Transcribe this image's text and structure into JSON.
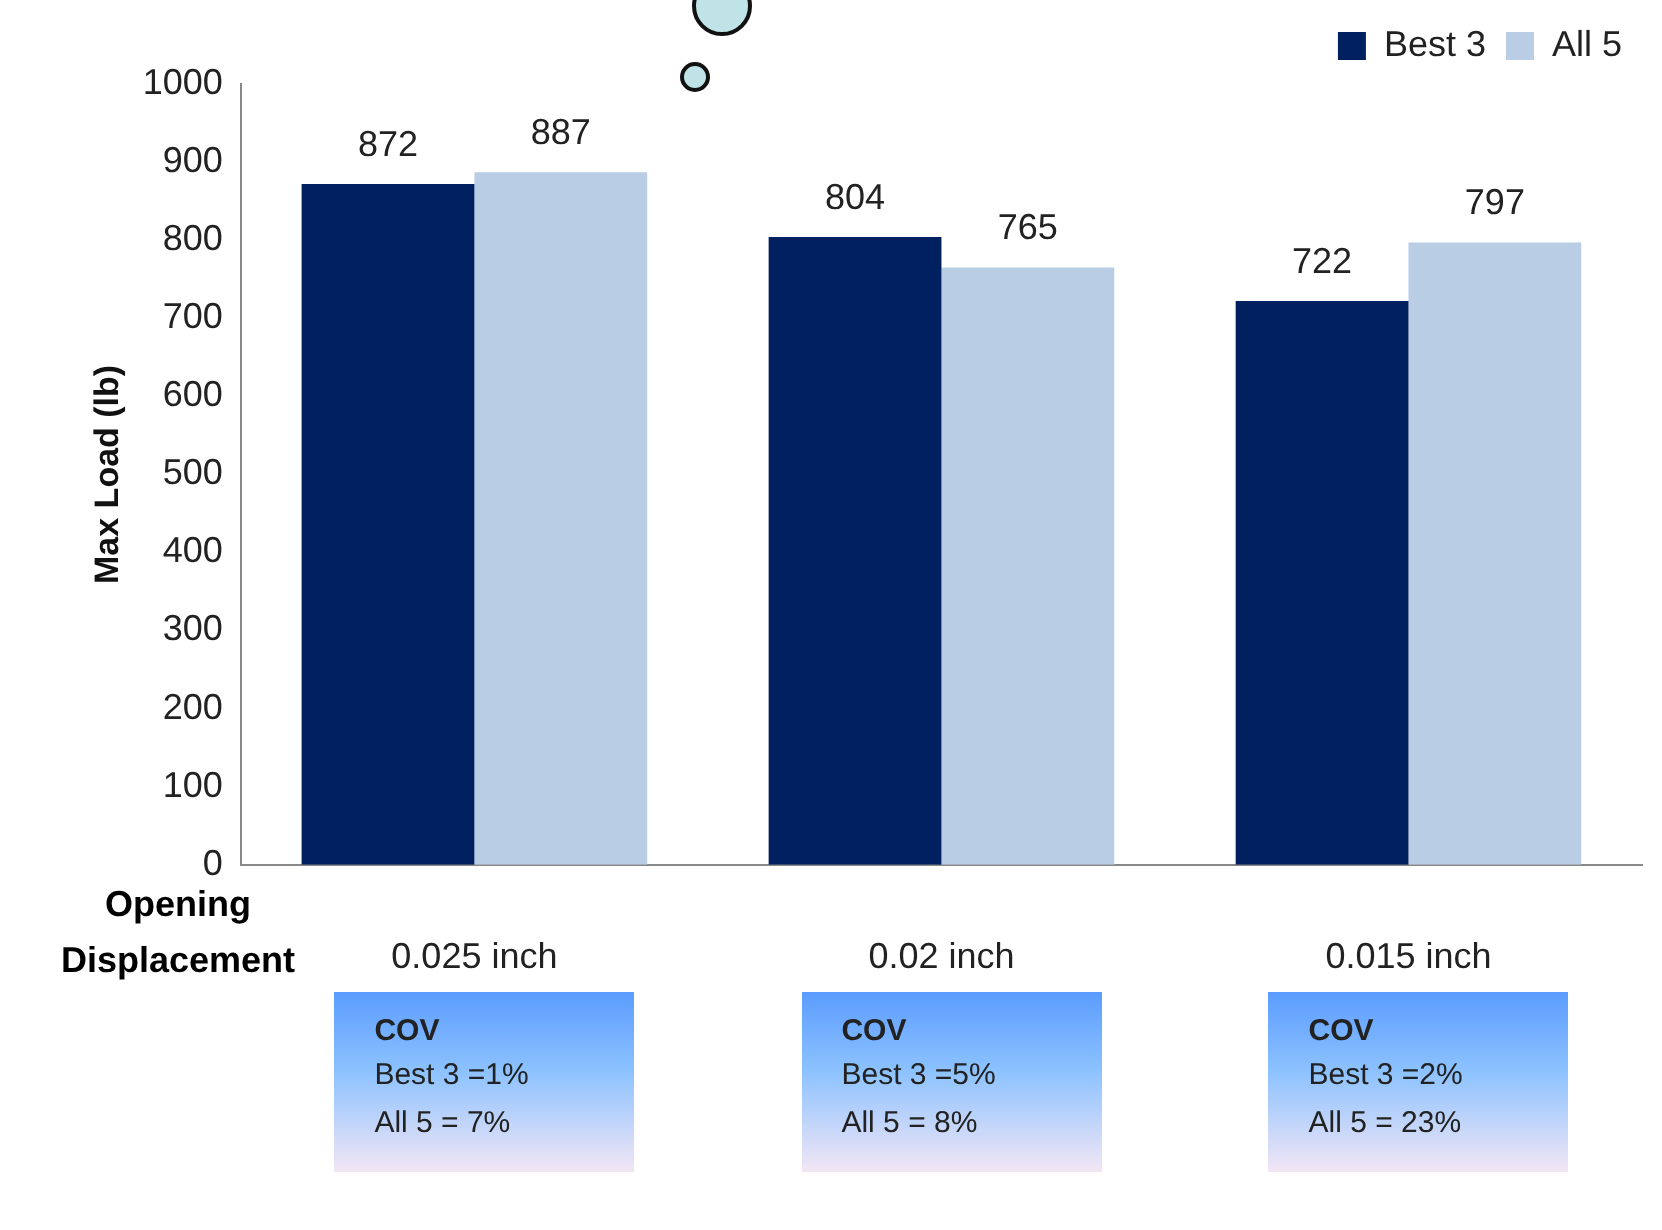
{
  "chart_data": {
    "type": "bar",
    "xlabel": "Opening Displacement",
    "ylabel": "Max Load (lb)",
    "categories": [
      "0.025 inch",
      "0.02 inch",
      "0.015 inch"
    ],
    "series": [
      {
        "name": "Best 3",
        "color": "#002060",
        "values": [
          872,
          804,
          722
        ]
      },
      {
        "name": "All 5",
        "color": "#b9cde5",
        "values": [
          887,
          765,
          797
        ]
      }
    ],
    "ylim": [
      0,
      1000
    ],
    "yticks": [
      0,
      100,
      200,
      300,
      400,
      500,
      600,
      700,
      800,
      900,
      1000
    ],
    "grid": false,
    "legend": "top right",
    "data_labels": true,
    "annotations": [
      "COV\nBest 3 =1%\nAll 5 = 7%",
      "COV\nBest 3 =5%\nAll 5 = 8%",
      "COV\nBest 3 =2%\nAll 5 = 23%"
    ]
  }
}
